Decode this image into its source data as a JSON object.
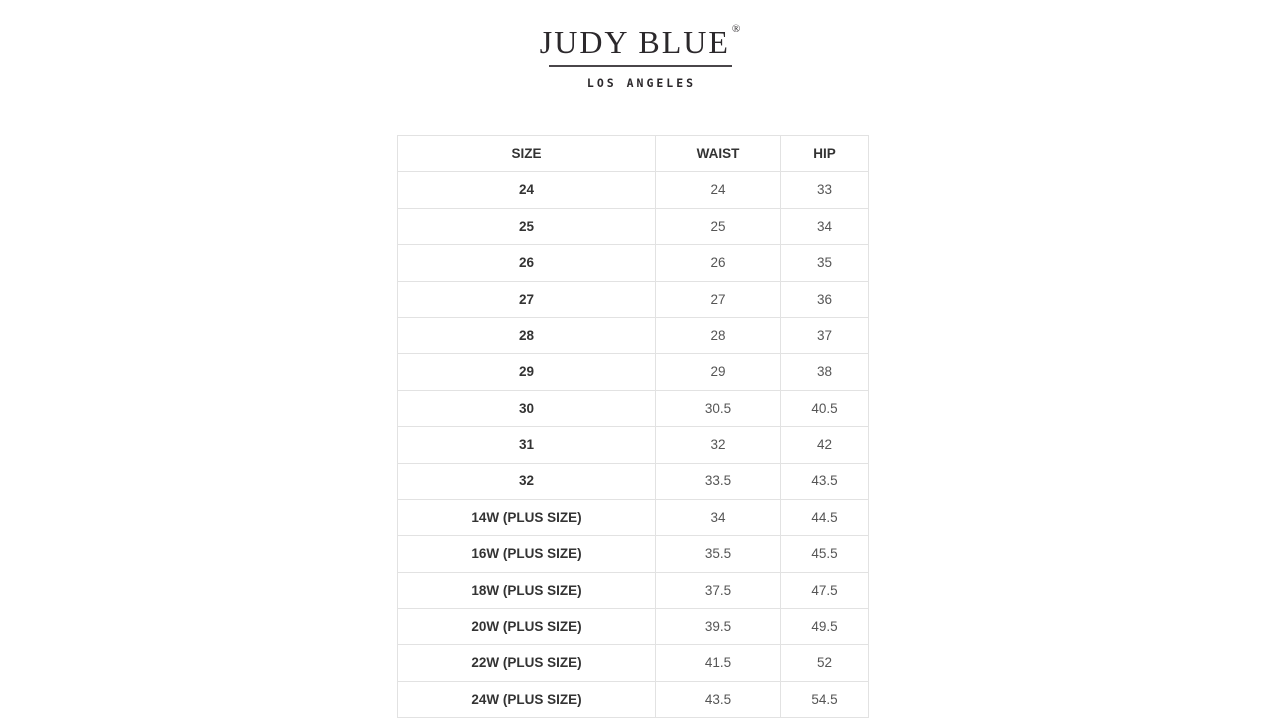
{
  "logo": {
    "brand": "JUDY BLUE",
    "registered_mark": "®",
    "subtitle": "LOS ANGELES"
  },
  "chart_data": {
    "type": "table",
    "columns": [
      "SIZE",
      "WAIST",
      "HIP"
    ],
    "rows": [
      [
        "24",
        "24",
        "33"
      ],
      [
        "25",
        "25",
        "34"
      ],
      [
        "26",
        "26",
        "35"
      ],
      [
        "27",
        "27",
        "36"
      ],
      [
        "28",
        "28",
        "37"
      ],
      [
        "29",
        "29",
        "38"
      ],
      [
        "30",
        "30.5",
        "40.5"
      ],
      [
        "31",
        "32",
        "42"
      ],
      [
        "32",
        "33.5",
        "43.5"
      ],
      [
        "14W (PLUS SIZE)",
        "34",
        "44.5"
      ],
      [
        "16W (PLUS SIZE)",
        "35.5",
        "45.5"
      ],
      [
        "18W (PLUS SIZE)",
        "37.5",
        "47.5"
      ],
      [
        "20W (PLUS SIZE)",
        "39.5",
        "49.5"
      ],
      [
        "22W (PLUS SIZE)",
        "41.5",
        "52"
      ],
      [
        "24W (PLUS SIZE)",
        "43.5",
        "54.5"
      ]
    ]
  },
  "colors": {
    "background": "#ffffff",
    "table_border": "#e2e2e2",
    "header_text": "#333333",
    "size_text": "#333333",
    "value_text": "#555555",
    "logo_text": "#2b282b",
    "divider": "#4a464a"
  }
}
